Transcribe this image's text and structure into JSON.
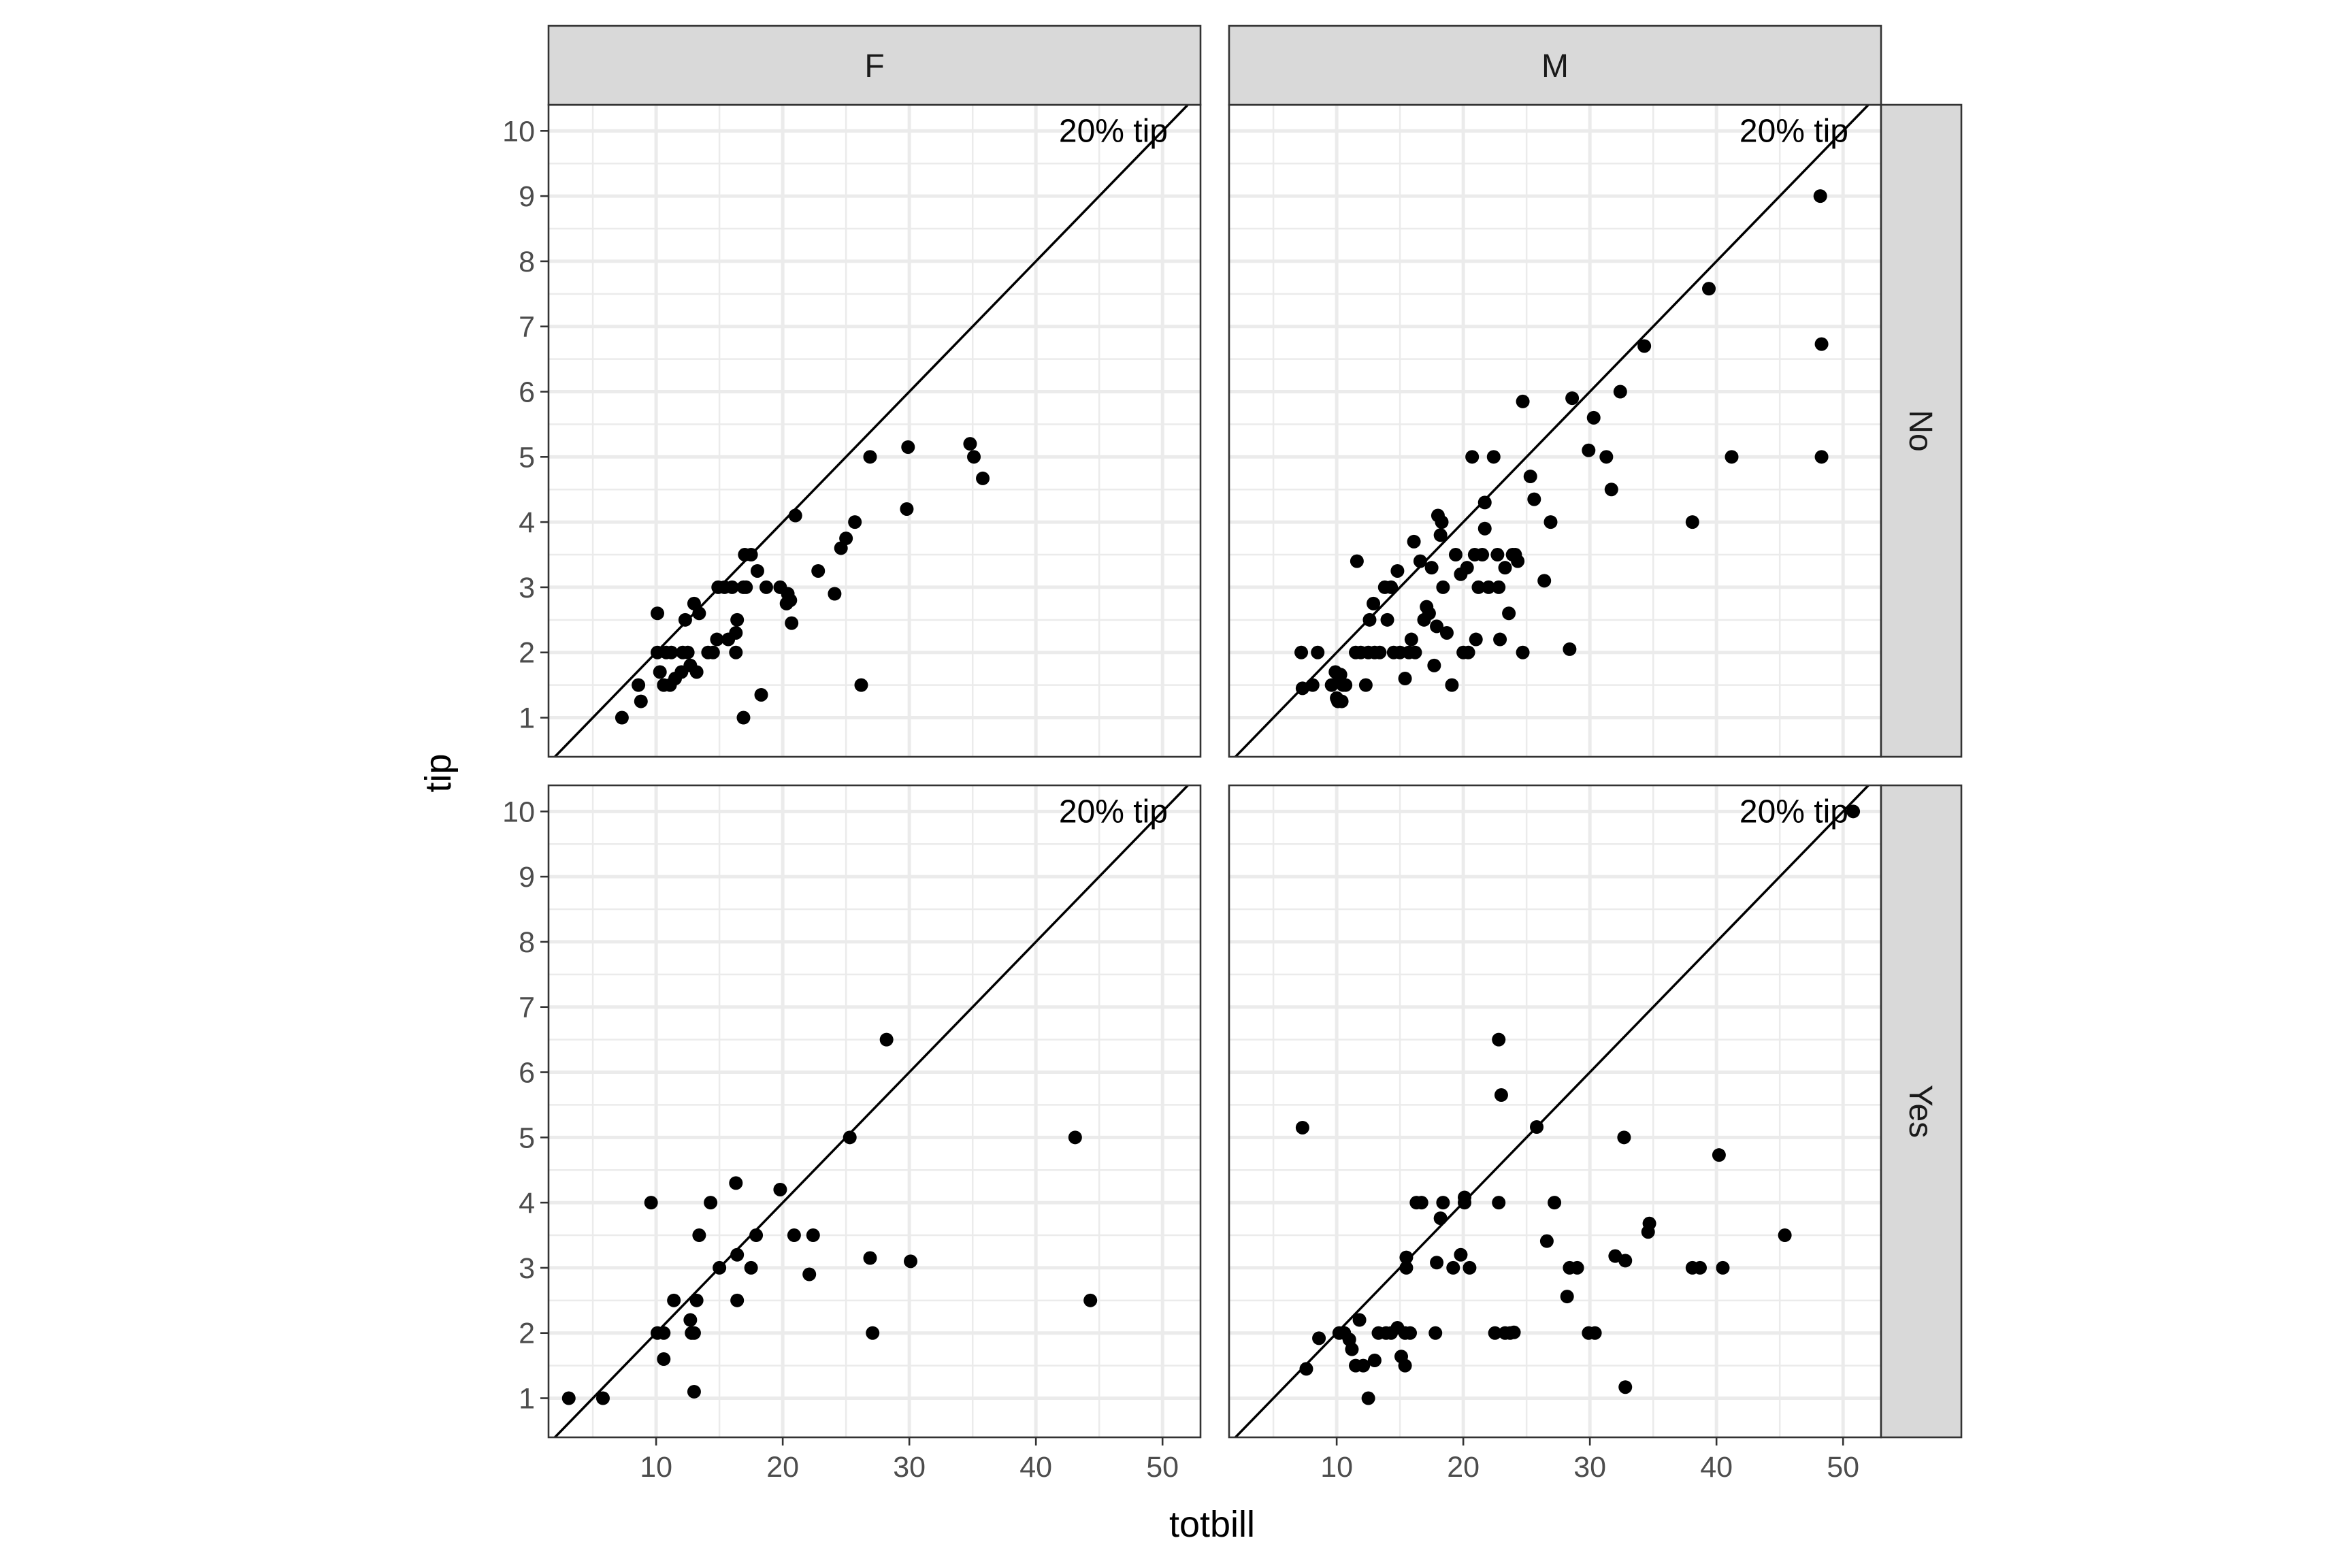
{
  "chart_data": {
    "type": "scatter",
    "xlabel": "totbill",
    "ylabel": "tip",
    "xlim": [
      1.5,
      53
    ],
    "ylim": [
      0.4,
      10.4
    ],
    "x_ticks": [
      10,
      20,
      30,
      40,
      50
    ],
    "y_ticks": [
      1,
      2,
      3,
      4,
      5,
      6,
      7,
      8,
      9,
      10
    ],
    "grid": true,
    "facet_cols": [
      "F",
      "M"
    ],
    "facet_rows": [
      "No",
      "Yes"
    ],
    "reference_line": {
      "label": "20% tip",
      "slope": 0.2,
      "intercept": 0
    },
    "colors": {
      "point": "#000000",
      "strip": "#d9d9d9",
      "grid": "#ebebeb",
      "border": "#333333"
    },
    "panels": [
      {
        "col": "F",
        "row": "No",
        "points": [
          [
            7.3,
            1.0
          ],
          [
            8.6,
            1.5
          ],
          [
            8.8,
            1.25
          ],
          [
            10.1,
            2.6
          ],
          [
            10.1,
            2.0
          ],
          [
            10.3,
            1.7
          ],
          [
            10.6,
            1.5
          ],
          [
            10.8,
            2.0
          ],
          [
            11.1,
            1.5
          ],
          [
            11.2,
            2.0
          ],
          [
            11.5,
            1.6
          ],
          [
            12.0,
            1.7
          ],
          [
            12.1,
            2.0
          ],
          [
            12.3,
            2.5
          ],
          [
            12.5,
            2.0
          ],
          [
            12.7,
            1.8
          ],
          [
            13.0,
            2.75
          ],
          [
            13.2,
            1.7
          ],
          [
            13.4,
            2.6
          ],
          [
            14.1,
            2.0
          ],
          [
            14.5,
            2.0
          ],
          [
            14.8,
            2.2
          ],
          [
            14.9,
            3.0
          ],
          [
            15.4,
            3.0
          ],
          [
            15.7,
            2.2
          ],
          [
            16.0,
            3.0
          ],
          [
            16.3,
            2.0
          ],
          [
            16.3,
            2.3
          ],
          [
            16.4,
            2.5
          ],
          [
            16.9,
            3.0
          ],
          [
            17.0,
            3.5
          ],
          [
            17.1,
            3.0
          ],
          [
            17.5,
            3.5
          ],
          [
            18.0,
            3.25
          ],
          [
            18.3,
            1.35
          ],
          [
            18.7,
            3.0
          ],
          [
            19.8,
            3.0
          ],
          [
            20.3,
            2.75
          ],
          [
            20.4,
            2.9
          ],
          [
            20.6,
            2.8
          ],
          [
            20.7,
            2.45
          ],
          [
            21.0,
            4.1
          ],
          [
            22.8,
            3.25
          ],
          [
            24.1,
            2.9
          ],
          [
            24.6,
            3.6
          ],
          [
            25.0,
            3.75
          ],
          [
            25.7,
            4.0
          ],
          [
            26.2,
            1.5
          ],
          [
            26.9,
            5.0
          ],
          [
            29.8,
            4.2
          ],
          [
            29.9,
            5.15
          ],
          [
            34.8,
            5.2
          ],
          [
            35.1,
            5.0
          ],
          [
            35.8,
            4.67
          ],
          [
            16.9,
            1.0
          ]
        ]
      },
      {
        "col": "M",
        "row": "No",
        "points": [
          [
            7.2,
            2.0
          ],
          [
            7.3,
            1.45
          ],
          [
            8.1,
            1.5
          ],
          [
            8.5,
            2.0
          ],
          [
            9.6,
            1.5
          ],
          [
            9.9,
            1.7
          ],
          [
            10.0,
            1.3
          ],
          [
            10.1,
            1.25
          ],
          [
            10.2,
            1.6
          ],
          [
            10.3,
            1.66
          ],
          [
            10.4,
            1.25
          ],
          [
            10.5,
            1.5
          ],
          [
            10.7,
            1.5
          ],
          [
            11.5,
            2.0
          ],
          [
            11.6,
            3.4
          ],
          [
            11.9,
            2.0
          ],
          [
            12.3,
            1.5
          ],
          [
            12.5,
            2.0
          ],
          [
            12.6,
            2.5
          ],
          [
            12.9,
            2.75
          ],
          [
            13.0,
            2.0
          ],
          [
            13.4,
            2.0
          ],
          [
            13.8,
            3.0
          ],
          [
            14.0,
            2.5
          ],
          [
            14.3,
            3.0
          ],
          [
            14.5,
            2.0
          ],
          [
            14.8,
            3.25
          ],
          [
            15.0,
            2.0
          ],
          [
            15.4,
            1.6
          ],
          [
            15.7,
            2.0
          ],
          [
            15.9,
            2.2
          ],
          [
            16.1,
            3.7
          ],
          [
            16.2,
            2.0
          ],
          [
            16.6,
            3.4
          ],
          [
            16.9,
            2.5
          ],
          [
            17.1,
            2.7
          ],
          [
            17.3,
            2.6
          ],
          [
            17.5,
            3.3
          ],
          [
            17.7,
            1.8
          ],
          [
            17.9,
            2.4
          ],
          [
            18.0,
            4.1
          ],
          [
            18.2,
            3.8
          ],
          [
            18.3,
            4.0
          ],
          [
            18.4,
            3.0
          ],
          [
            18.7,
            2.3
          ],
          [
            19.1,
            1.5
          ],
          [
            19.4,
            3.5
          ],
          [
            19.8,
            3.2
          ],
          [
            20.0,
            2.0
          ],
          [
            20.3,
            3.3
          ],
          [
            20.4,
            2.0
          ],
          [
            20.7,
            5.0
          ],
          [
            20.9,
            3.5
          ],
          [
            21.0,
            2.2
          ],
          [
            21.2,
            3.0
          ],
          [
            21.5,
            3.5
          ],
          [
            21.7,
            4.3
          ],
          [
            21.7,
            3.9
          ],
          [
            22.0,
            3.0
          ],
          [
            22.4,
            5.0
          ],
          [
            22.7,
            3.5
          ],
          [
            22.8,
            3.0
          ],
          [
            22.9,
            2.2
          ],
          [
            23.3,
            3.3
          ],
          [
            23.6,
            2.6
          ],
          [
            23.9,
            3.5
          ],
          [
            24.1,
            3.5
          ],
          [
            24.3,
            3.4
          ],
          [
            24.7,
            5.85
          ],
          [
            24.7,
            2.0
          ],
          [
            25.3,
            4.7
          ],
          [
            25.6,
            4.35
          ],
          [
            26.4,
            3.1
          ],
          [
            26.9,
            4.0
          ],
          [
            28.4,
            2.05
          ],
          [
            28.6,
            5.9
          ],
          [
            29.9,
            5.1
          ],
          [
            30.3,
            5.6
          ],
          [
            31.3,
            5.0
          ],
          [
            31.7,
            4.5
          ],
          [
            32.4,
            6.0
          ],
          [
            34.3,
            6.7
          ],
          [
            38.1,
            4.0
          ],
          [
            39.4,
            7.58
          ],
          [
            41.2,
            5.0
          ],
          [
            48.2,
            9.0
          ],
          [
            48.3,
            6.73
          ],
          [
            48.3,
            5.0
          ]
        ]
      },
      {
        "col": "F",
        "row": "Yes",
        "points": [
          [
            3.1,
            1.0
          ],
          [
            5.8,
            1.0
          ],
          [
            9.6,
            4.0
          ],
          [
            10.1,
            2.0
          ],
          [
            10.6,
            1.6
          ],
          [
            10.6,
            2.0
          ],
          [
            11.4,
            2.5
          ],
          [
            12.7,
            2.2
          ],
          [
            12.8,
            2.0
          ],
          [
            13.0,
            1.1
          ],
          [
            13.0,
            2.0
          ],
          [
            13.2,
            2.5
          ],
          [
            13.4,
            3.5
          ],
          [
            14.3,
            4.0
          ],
          [
            15.0,
            3.0
          ],
          [
            16.3,
            4.3
          ],
          [
            16.4,
            2.5
          ],
          [
            16.4,
            3.2
          ],
          [
            17.5,
            3.0
          ],
          [
            17.9,
            3.5
          ],
          [
            19.8,
            4.2
          ],
          [
            20.9,
            3.5
          ],
          [
            22.1,
            2.9
          ],
          [
            22.4,
            3.5
          ],
          [
            25.3,
            5.0
          ],
          [
            26.9,
            3.15
          ],
          [
            27.1,
            2.0
          ],
          [
            28.2,
            6.5
          ],
          [
            30.1,
            3.1
          ],
          [
            43.1,
            5.0
          ],
          [
            44.3,
            2.5
          ]
        ]
      },
      {
        "col": "M",
        "row": "Yes",
        "points": [
          [
            7.3,
            5.15
          ],
          [
            7.6,
            1.45
          ],
          [
            8.6,
            1.92
          ],
          [
            10.2,
            2.0
          ],
          [
            10.6,
            2.0
          ],
          [
            11.0,
            1.9
          ],
          [
            11.2,
            1.75
          ],
          [
            11.5,
            1.5
          ],
          [
            11.8,
            2.2
          ],
          [
            12.1,
            1.5
          ],
          [
            12.5,
            1.0
          ],
          [
            13.0,
            1.58
          ],
          [
            13.3,
            2.0
          ],
          [
            13.9,
            2.0
          ],
          [
            14.3,
            2.0
          ],
          [
            14.8,
            2.08
          ],
          [
            15.1,
            1.64
          ],
          [
            15.4,
            1.5
          ],
          [
            15.4,
            2.0
          ],
          [
            15.5,
            3.0
          ],
          [
            15.5,
            3.16
          ],
          [
            15.8,
            2.0
          ],
          [
            16.3,
            4.0
          ],
          [
            16.7,
            4.0
          ],
          [
            17.8,
            2.0
          ],
          [
            17.9,
            3.08
          ],
          [
            18.2,
            3.76
          ],
          [
            18.4,
            4.0
          ],
          [
            19.2,
            3.0
          ],
          [
            19.8,
            3.2
          ],
          [
            20.1,
            4.08
          ],
          [
            20.1,
            4.0
          ],
          [
            20.5,
            3.0
          ],
          [
            22.5,
            2.0
          ],
          [
            22.8,
            4.0
          ],
          [
            22.8,
            6.5
          ],
          [
            23.0,
            5.65
          ],
          [
            23.3,
            2.0
          ],
          [
            23.7,
            2.0
          ],
          [
            24.0,
            2.01
          ],
          [
            25.8,
            5.16
          ],
          [
            26.6,
            3.41
          ],
          [
            27.2,
            4.0
          ],
          [
            28.2,
            2.56
          ],
          [
            28.4,
            3.0
          ],
          [
            29.0,
            3.0
          ],
          [
            29.9,
            2.0
          ],
          [
            30.4,
            2.0
          ],
          [
            32.0,
            3.18
          ],
          [
            32.7,
            5.0
          ],
          [
            32.8,
            3.11
          ],
          [
            32.8,
            1.17
          ],
          [
            34.6,
            3.55
          ],
          [
            34.7,
            3.68
          ],
          [
            38.1,
            3.0
          ],
          [
            38.7,
            3.0
          ],
          [
            40.2,
            4.73
          ],
          [
            40.5,
            3.0
          ],
          [
            45.4,
            3.5
          ],
          [
            50.8,
            10.0
          ]
        ]
      }
    ]
  }
}
